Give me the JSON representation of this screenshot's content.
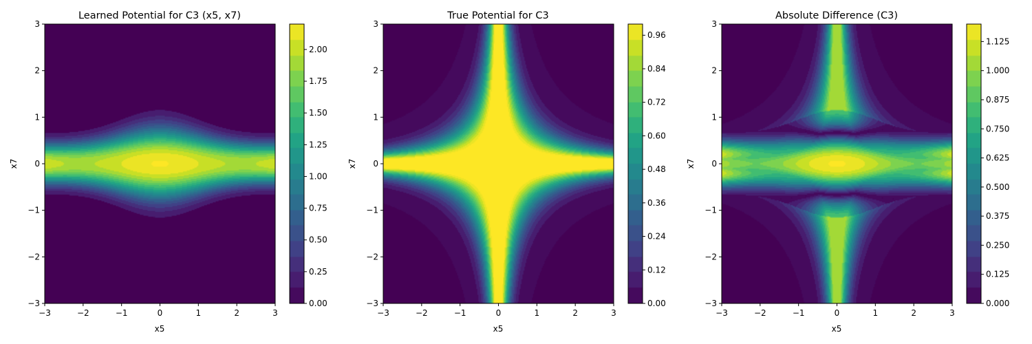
{
  "chart_data": [
    {
      "type": "heatmap",
      "field": "learned",
      "title": "Learned Potential for C3 (x5, x7)",
      "xlabel": "x5",
      "ylabel": "x7",
      "xlim": [
        -3,
        3
      ],
      "ylim": [
        -3,
        3
      ],
      "xticks": [
        "−3",
        "−2",
        "−1",
        "0",
        "1",
        "2",
        "3"
      ],
      "yticks": [
        "−3",
        "−2",
        "−1",
        "0",
        "1",
        "2",
        "3"
      ],
      "colorbar": {
        "min": 0,
        "max": 2.2,
        "ticks": [
          "0.00",
          "0.25",
          "0.50",
          "0.75",
          "1.00",
          "1.25",
          "1.50",
          "1.75",
          "2.00"
        ],
        "tick_values": [
          0,
          0.25,
          0.5,
          0.75,
          1.0,
          1.25,
          1.5,
          1.75,
          2.0
        ]
      }
    },
    {
      "type": "heatmap",
      "field": "true",
      "title": "True Potential for C3",
      "xlabel": "x5",
      "ylabel": "x7",
      "xlim": [
        -3,
        3
      ],
      "ylim": [
        -3,
        3
      ],
      "xticks": [
        "−3",
        "−2",
        "−1",
        "0",
        "1",
        "2",
        "3"
      ],
      "yticks": [
        "−3",
        "−2",
        "−1",
        "0",
        "1",
        "2",
        "3"
      ],
      "colorbar": {
        "min": 0,
        "max": 1.0,
        "ticks": [
          "0.00",
          "0.12",
          "0.24",
          "0.36",
          "0.48",
          "0.60",
          "0.72",
          "0.84",
          "0.96"
        ],
        "tick_values": [
          0,
          0.12,
          0.24,
          0.36,
          0.48,
          0.6,
          0.72,
          0.84,
          0.96
        ]
      }
    },
    {
      "type": "heatmap",
      "field": "diff",
      "title": "Absolute Difference (C3)",
      "xlabel": "x5",
      "ylabel": "x7",
      "xlim": [
        -3,
        3
      ],
      "ylim": [
        -3,
        3
      ],
      "xticks": [
        "−3",
        "−2",
        "−1",
        "0",
        "1",
        "2",
        "3"
      ],
      "yticks": [
        "−3",
        "−2",
        "−1",
        "0",
        "1",
        "2",
        "3"
      ],
      "colorbar": {
        "min": 0,
        "max": 1.2,
        "ticks": [
          "0.000",
          "0.125",
          "0.250",
          "0.375",
          "0.500",
          "0.625",
          "0.750",
          "0.875",
          "1.000",
          "1.125"
        ],
        "tick_values": [
          0,
          0.125,
          0.25,
          0.375,
          0.5,
          0.625,
          0.75,
          0.875,
          1.0,
          1.125
        ]
      }
    }
  ]
}
